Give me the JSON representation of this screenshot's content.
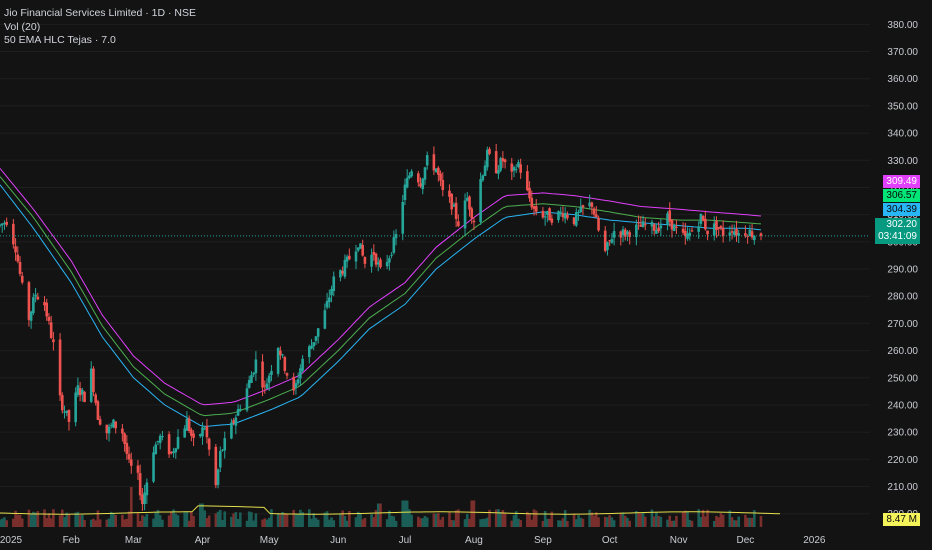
{
  "legend": {
    "title": "Jio Financial Services Limited · 1D · NSE",
    "volume": "Vol (20)",
    "indicator": "50 EMA HLC Tejas · 7.0"
  },
  "price_tags": {
    "high_ema": "309.49",
    "close_ema": "306.57",
    "low_ema": "304.39",
    "last_price": "302.20",
    "countdown": "03:41:09",
    "volume": "8.47 M"
  },
  "colors": {
    "background": "#131313",
    "up": "#26a69a",
    "down": "#ef5350",
    "ema_high": "#e040fb",
    "ema_close": "#4caf50",
    "ema_low": "#29b6f6",
    "volume_ma": "#e6e04a"
  },
  "chart_data": {
    "type": "candlestick",
    "y_axis_ticks": [
      380,
      370,
      360,
      350,
      340,
      330,
      320,
      310,
      300,
      290,
      280,
      270,
      260,
      250,
      240,
      230,
      220,
      210,
      200
    ],
    "y_axis_labels": [
      "380.00",
      "370.00",
      "360.00",
      "350.00",
      "340.00",
      "330.00",
      "320.00",
      "310.00",
      "300.00",
      "290.00",
      "280.00",
      "270.00",
      "260.00",
      "250.00",
      "240.00",
      "230.00",
      "220.00",
      "210.00",
      "200.00"
    ],
    "ylim": [
      194,
      386
    ],
    "x_axis_labels": [
      "2025",
      "Feb",
      "Mar",
      "Apr",
      "May",
      "Jun",
      "Jul",
      "Aug",
      "Sep",
      "Oct",
      "Nov",
      "Dec",
      "2026"
    ],
    "x_axis_dates": [
      "2025-01-01",
      "2025-02-01",
      "2025-03-01",
      "2025-04-01",
      "2025-05-01",
      "2025-06-01",
      "2025-07-01",
      "2025-08-01",
      "2025-09-01",
      "2025-10-01",
      "2025-11-01",
      "2025-12-01",
      "2026-01-01"
    ],
    "xlim": [
      "2024-12-31",
      "2026-01-26"
    ],
    "price_path": [
      [
        "2024-12-31",
        306
      ],
      [
        "2025-01-03",
        308
      ],
      [
        "2025-01-07",
        298
      ],
      [
        "2025-01-10",
        283
      ],
      [
        "2025-01-13",
        272
      ],
      [
        "2025-01-16",
        281
      ],
      [
        "2025-01-20",
        277
      ],
      [
        "2025-01-24",
        262
      ],
      [
        "2025-01-27",
        242
      ],
      [
        "2025-01-31",
        234
      ],
      [
        "2025-02-04",
        246
      ],
      [
        "2025-02-07",
        243
      ],
      [
        "2025-02-10",
        252
      ],
      [
        "2025-02-13",
        236
      ],
      [
        "2025-02-17",
        230
      ],
      [
        "2025-02-20",
        233
      ],
      [
        "2025-02-24",
        230
      ],
      [
        "2025-02-27",
        218
      ],
      [
        "2025-03-03",
        213
      ],
      [
        "2025-03-05",
        204
      ],
      [
        "2025-03-10",
        224
      ],
      [
        "2025-03-13",
        228
      ],
      [
        "2025-03-18",
        222
      ],
      [
        "2025-03-21",
        228
      ],
      [
        "2025-03-25",
        234
      ],
      [
        "2025-03-28",
        226
      ],
      [
        "2025-04-02",
        232
      ],
      [
        "2025-04-07",
        210
      ],
      [
        "2025-04-09",
        222
      ],
      [
        "2025-04-15",
        234
      ],
      [
        "2025-04-21",
        246
      ],
      [
        "2025-04-25",
        256
      ],
      [
        "2025-04-29",
        246
      ],
      [
        "2025-05-05",
        262
      ],
      [
        "2025-05-08",
        254
      ],
      [
        "2025-05-12",
        244
      ],
      [
        "2025-05-16",
        257
      ],
      [
        "2025-05-20",
        262
      ],
      [
        "2025-05-26",
        274
      ],
      [
        "2025-05-30",
        286
      ],
      [
        "2025-06-03",
        290
      ],
      [
        "2025-06-06",
        294
      ],
      [
        "2025-06-10",
        300
      ],
      [
        "2025-06-13",
        292
      ],
      [
        "2025-06-17",
        296
      ],
      [
        "2025-06-20",
        289
      ],
      [
        "2025-06-24",
        295
      ],
      [
        "2025-06-27",
        302
      ],
      [
        "2025-07-01",
        320
      ],
      [
        "2025-07-04",
        327
      ],
      [
        "2025-07-08",
        322
      ],
      [
        "2025-07-11",
        330
      ],
      [
        "2025-07-15",
        327
      ],
      [
        "2025-07-18",
        318
      ],
      [
        "2025-07-22",
        314
      ],
      [
        "2025-07-25",
        307
      ],
      [
        "2025-07-29",
        316
      ],
      [
        "2025-08-01",
        308
      ],
      [
        "2025-08-04",
        323
      ],
      [
        "2025-08-07",
        332
      ],
      [
        "2025-08-11",
        327
      ],
      [
        "2025-08-14",
        330
      ],
      [
        "2025-08-18",
        324
      ],
      [
        "2025-08-21",
        329
      ],
      [
        "2025-08-25",
        318
      ],
      [
        "2025-08-28",
        312
      ],
      [
        "2025-09-01",
        310
      ],
      [
        "2025-09-05",
        309
      ],
      [
        "2025-09-10",
        311
      ],
      [
        "2025-09-15",
        308
      ],
      [
        "2025-09-19",
        312
      ],
      [
        "2025-09-23",
        314
      ],
      [
        "2025-09-26",
        304
      ],
      [
        "2025-09-29",
        296
      ],
      [
        "2025-10-03",
        304
      ],
      [
        "2025-10-08",
        303
      ],
      [
        "2025-10-13",
        305
      ],
      [
        "2025-10-17",
        306
      ],
      [
        "2025-10-22",
        305
      ],
      [
        "2025-10-27",
        309
      ],
      [
        "2025-10-31",
        304
      ],
      [
        "2025-11-04",
        301
      ],
      [
        "2025-11-07",
        304
      ],
      [
        "2025-11-11",
        309
      ],
      [
        "2025-11-14",
        304
      ],
      [
        "2025-11-18",
        306
      ],
      [
        "2025-11-21",
        303
      ],
      [
        "2025-11-25",
        305
      ],
      [
        "2025-11-28",
        303
      ],
      [
        "2025-12-02",
        304
      ],
      [
        "2025-12-04",
        303
      ],
      [
        "2025-12-08",
        302
      ]
    ],
    "ema_high_path": [
      [
        "2024-12-31",
        327
      ],
      [
        "2025-01-15",
        312
      ],
      [
        "2025-02-01",
        293
      ],
      [
        "2025-02-15",
        273
      ],
      [
        "2025-03-01",
        258
      ],
      [
        "2025-03-15",
        248
      ],
      [
        "2025-04-01",
        240
      ],
      [
        "2025-04-15",
        241
      ],
      [
        "2025-05-01",
        246
      ],
      [
        "2025-05-15",
        251
      ],
      [
        "2025-06-01",
        264
      ],
      [
        "2025-06-15",
        276
      ],
      [
        "2025-07-01",
        285
      ],
      [
        "2025-07-15",
        298
      ],
      [
        "2025-08-01",
        309
      ],
      [
        "2025-08-15",
        317
      ],
      [
        "2025-09-01",
        318
      ],
      [
        "2025-09-15",
        317
      ],
      [
        "2025-10-01",
        315
      ],
      [
        "2025-10-15",
        313
      ],
      [
        "2025-11-01",
        312
      ],
      [
        "2025-11-15",
        311
      ],
      [
        "2025-12-01",
        310
      ],
      [
        "2025-12-08",
        309.5
      ]
    ],
    "ema_close_path": [
      [
        "2024-12-31",
        324
      ],
      [
        "2025-01-15",
        309
      ],
      [
        "2025-02-01",
        289
      ],
      [
        "2025-02-15",
        269
      ],
      [
        "2025-03-01",
        254
      ],
      [
        "2025-03-15",
        244
      ],
      [
        "2025-04-01",
        236
      ],
      [
        "2025-04-15",
        237
      ],
      [
        "2025-05-01",
        242
      ],
      [
        "2025-05-15",
        247
      ],
      [
        "2025-06-01",
        260
      ],
      [
        "2025-06-15",
        272
      ],
      [
        "2025-07-01",
        281
      ],
      [
        "2025-07-15",
        294
      ],
      [
        "2025-08-01",
        305
      ],
      [
        "2025-08-15",
        313
      ],
      [
        "2025-09-01",
        314
      ],
      [
        "2025-09-15",
        313
      ],
      [
        "2025-10-01",
        311
      ],
      [
        "2025-10-15",
        309
      ],
      [
        "2025-11-01",
        308
      ],
      [
        "2025-11-15",
        308
      ],
      [
        "2025-12-01",
        307
      ],
      [
        "2025-12-08",
        306.6
      ]
    ],
    "ema_low_path": [
      [
        "2024-12-31",
        321
      ],
      [
        "2025-01-15",
        305
      ],
      [
        "2025-02-01",
        285
      ],
      [
        "2025-02-15",
        265
      ],
      [
        "2025-03-01",
        250
      ],
      [
        "2025-03-15",
        240
      ],
      [
        "2025-04-01",
        232
      ],
      [
        "2025-04-15",
        233
      ],
      [
        "2025-05-01",
        238
      ],
      [
        "2025-05-15",
        243
      ],
      [
        "2025-06-01",
        256
      ],
      [
        "2025-06-15",
        268
      ],
      [
        "2025-07-01",
        277
      ],
      [
        "2025-07-15",
        290
      ],
      [
        "2025-08-01",
        301
      ],
      [
        "2025-08-15",
        309
      ],
      [
        "2025-09-01",
        311
      ],
      [
        "2025-09-15",
        310
      ],
      [
        "2025-10-01",
        308
      ],
      [
        "2025-10-15",
        307
      ],
      [
        "2025-11-01",
        306
      ],
      [
        "2025-11-15",
        305
      ],
      [
        "2025-12-01",
        305
      ],
      [
        "2025-12-08",
        304.4
      ]
    ],
    "volume_spikes": [
      [
        "2025-03-01",
        1.0
      ],
      [
        "2025-03-31",
        0.45
      ],
      [
        "2025-07-01",
        0.55
      ],
      [
        "2025-08-01",
        0.55
      ],
      [
        "2025-06-20",
        0.45
      ]
    ],
    "last_price": 302.2,
    "last_volume": "8.47 M"
  }
}
